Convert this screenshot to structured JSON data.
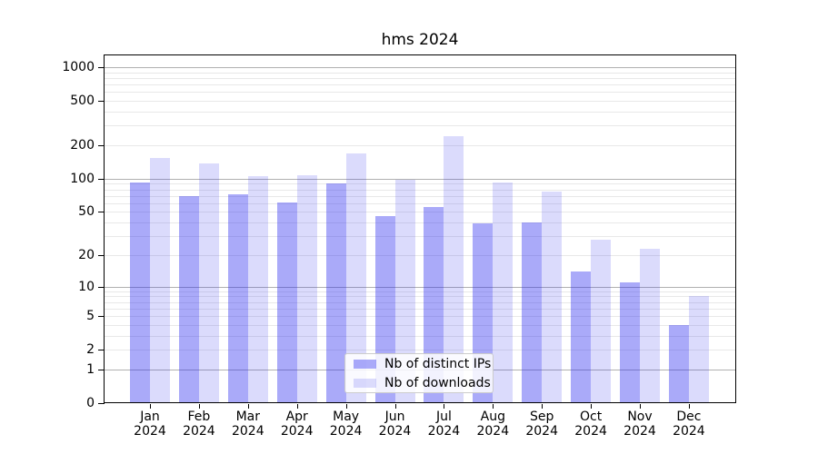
{
  "figure": {
    "background": "#ffffff"
  },
  "chart_data": {
    "type": "bar",
    "title": "hms 2024",
    "categories": [
      "Jan 2024",
      "Feb 2024",
      "Mar 2024",
      "Apr 2024",
      "May 2024",
      "Jun 2024",
      "Jul 2024",
      "Aug 2024",
      "Sep 2024",
      "Oct 2024",
      "Nov 2024",
      "Dec 2024"
    ],
    "series": [
      {
        "name": "Nb of distinct IPs",
        "fill": "rgba(43,43,240,0.40)",
        "solid": "#aaaaf9",
        "values": [
          92,
          69,
          72,
          61,
          91,
          46,
          55,
          39,
          40,
          14,
          11,
          4
        ]
      },
      {
        "name": "Nb of downloads",
        "fill": "rgba(43,43,240,0.17)",
        "solid": "#dbdbfc",
        "values": [
          155,
          138,
          106,
          107,
          168,
          97,
          240,
          92,
          76,
          28,
          23,
          8
        ]
      }
    ],
    "xlabel": "",
    "ylabel": "",
    "yscale": "log1p",
    "ylim": [
      0,
      1380
    ],
    "yticks": [
      0,
      1,
      2,
      5,
      10,
      20,
      50,
      100,
      200,
      500,
      1000
    ],
    "major_grid_values": [
      1,
      10,
      100,
      1000
    ],
    "grid": true,
    "legend_position": "lower center",
    "colors": {
      "grid_major": "#b0b0b0",
      "grid_minor": "#e8e8e8",
      "axis": "#000000",
      "text": "#000000",
      "legend_border": "#cccccc",
      "legend_bg": "rgba(255,255,255,0.85)"
    }
  }
}
